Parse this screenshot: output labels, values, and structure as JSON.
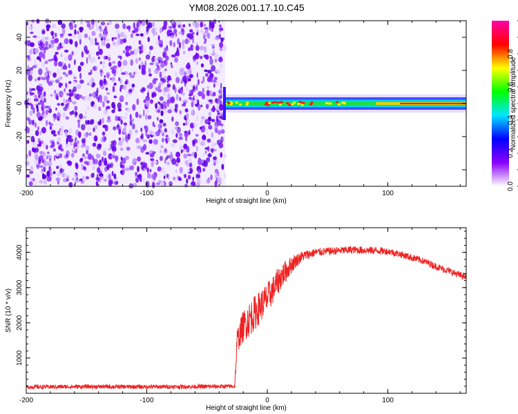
{
  "title": "YM08.2026.001.17.10.C45",
  "chart_data": [
    {
      "type": "heatmap",
      "xlabel": "Height of straight line (km)",
      "ylabel": "Frequency (Hz)",
      "xlim": [
        -200,
        165
      ],
      "ylim": [
        -50,
        50
      ],
      "xticks": [
        -200,
        -100,
        0,
        100
      ],
      "xtick_labels": [
        "-200",
        "-100",
        "0",
        "100"
      ],
      "yticks": [
        -40,
        -20,
        0,
        20,
        40
      ],
      "ytick_labels": [
        "-40",
        "-20",
        "0",
        "20",
        "40"
      ],
      "noise_region_x": [
        -200,
        -35
      ],
      "signal_band": {
        "x_start": -35,
        "x_end": 165,
        "center_freq": 0,
        "half_width_hz": 2.5
      },
      "colorbar": {
        "label": "Normalized spectral amplitude",
        "range": [
          0,
          1
        ],
        "ticks": [
          0.0,
          0.2,
          0.4,
          0.6,
          0.8
        ],
        "tick_labels": [
          "0.0",
          "0.2",
          "0.4",
          "0.6",
          "0.8"
        ],
        "colormap": [
          "#ffffff",
          "#8a00ff",
          "#0000ff",
          "#00e5ff",
          "#00ff00",
          "#ffff00",
          "#ff0000",
          "#ff00aa"
        ]
      }
    },
    {
      "type": "line",
      "xlabel": "Height of straight line (km)",
      "ylabel": "SNR (10 * v/v)",
      "xlim": [
        -200,
        165
      ],
      "ylim": [
        0,
        4700
      ],
      "xticks": [
        -200,
        -100,
        0,
        100
      ],
      "xtick_labels": [
        "-200",
        "-100",
        "0",
        "100"
      ],
      "yticks": [
        1000,
        2000,
        3000,
        4000
      ],
      "ytick_labels": [
        "1000",
        "2000",
        "3000",
        "4000"
      ],
      "series": [
        {
          "color": "#ee2222",
          "x": [
            -200,
            -150,
            -100,
            -50,
            -27,
            -25,
            -20,
            -15,
            -10,
            -5,
            0,
            5,
            10,
            15,
            20,
            25,
            30,
            40,
            50,
            60,
            70,
            80,
            90,
            100,
            110,
            120,
            130,
            140,
            150,
            160,
            165
          ],
          "y": [
            180,
            190,
            185,
            190,
            200,
            1500,
            1900,
            2100,
            2300,
            2500,
            2700,
            2950,
            3250,
            3450,
            3650,
            3800,
            3900,
            4000,
            4030,
            4050,
            4070,
            4060,
            4050,
            4030,
            3950,
            3850,
            3750,
            3600,
            3480,
            3350,
            3300
          ],
          "noise_amplitude": [
            60,
            60,
            60,
            60,
            60,
            350,
            450,
            500,
            500,
            450,
            450,
            400,
            380,
            320,
            250,
            180,
            150,
            120,
            110,
            110,
            110,
            110,
            110,
            100,
            100,
            100,
            100,
            100,
            100,
            100,
            100
          ]
        }
      ]
    }
  ]
}
